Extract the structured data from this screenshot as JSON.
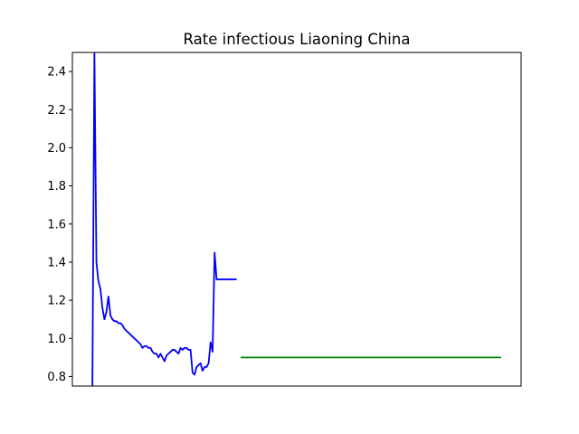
{
  "chart_data": {
    "type": "line",
    "title": "Rate infectious Liaoning China",
    "xlabel": "",
    "ylabel": "",
    "ylim": [
      0.75,
      2.5
    ],
    "xlim": [
      0,
      224
    ],
    "grid": false,
    "x_ticks_visible": false,
    "y_ticks": [
      {
        "value": 0.8,
        "label": "0.8"
      },
      {
        "value": 1.0,
        "label": "1.0"
      },
      {
        "value": 1.2,
        "label": "1.2"
      },
      {
        "value": 1.4,
        "label": "1.4"
      },
      {
        "value": 1.6,
        "label": "1.6"
      },
      {
        "value": 1.8,
        "label": "1.8"
      },
      {
        "value": 2.0,
        "label": "2.0"
      },
      {
        "value": 2.2,
        "label": "2.2"
      },
      {
        "value": 2.4,
        "label": "2.4"
      }
    ],
    "series": [
      {
        "color": "#0000ff",
        "x": [
          10,
          11,
          12,
          13,
          14,
          15,
          16,
          17,
          18,
          19,
          20,
          21,
          22,
          23,
          24,
          25,
          26,
          27,
          28,
          29,
          30,
          31,
          32,
          33,
          34,
          35,
          36,
          37,
          38,
          39,
          40,
          41,
          42,
          43,
          44,
          45,
          46,
          47,
          48,
          49,
          50,
          51,
          52,
          53,
          54,
          55,
          56,
          57,
          58,
          59,
          60,
          61,
          62,
          63,
          64,
          65,
          66,
          67,
          68,
          69,
          70,
          71,
          72,
          73,
          74,
          75,
          76,
          77,
          78,
          79,
          80,
          81,
          82
        ],
        "y": [
          0.75,
          2.5,
          1.4,
          1.3,
          1.26,
          1.16,
          1.1,
          1.14,
          1.22,
          1.12,
          1.1,
          1.09,
          1.09,
          1.08,
          1.08,
          1.07,
          1.05,
          1.04,
          1.03,
          1.02,
          1.01,
          1.0,
          0.99,
          0.98,
          0.97,
          0.95,
          0.96,
          0.96,
          0.95,
          0.95,
          0.93,
          0.92,
          0.92,
          0.9,
          0.92,
          0.9,
          0.88,
          0.91,
          0.92,
          0.93,
          0.94,
          0.94,
          0.93,
          0.92,
          0.95,
          0.94,
          0.95,
          0.95,
          0.94,
          0.94,
          0.82,
          0.81,
          0.85,
          0.86,
          0.87,
          0.83,
          0.85,
          0.85,
          0.87,
          0.98,
          0.93,
          1.45,
          1.31,
          1.31,
          1.31,
          1.31,
          1.31,
          1.31,
          1.31,
          1.31,
          1.31,
          1.31,
          1.31
        ],
        "x_end": 82,
        "y_end_visible": 1.31
      },
      {
        "color": "#008000",
        "x": [
          84,
          214
        ],
        "y": [
          0.9,
          0.9
        ]
      }
    ]
  }
}
